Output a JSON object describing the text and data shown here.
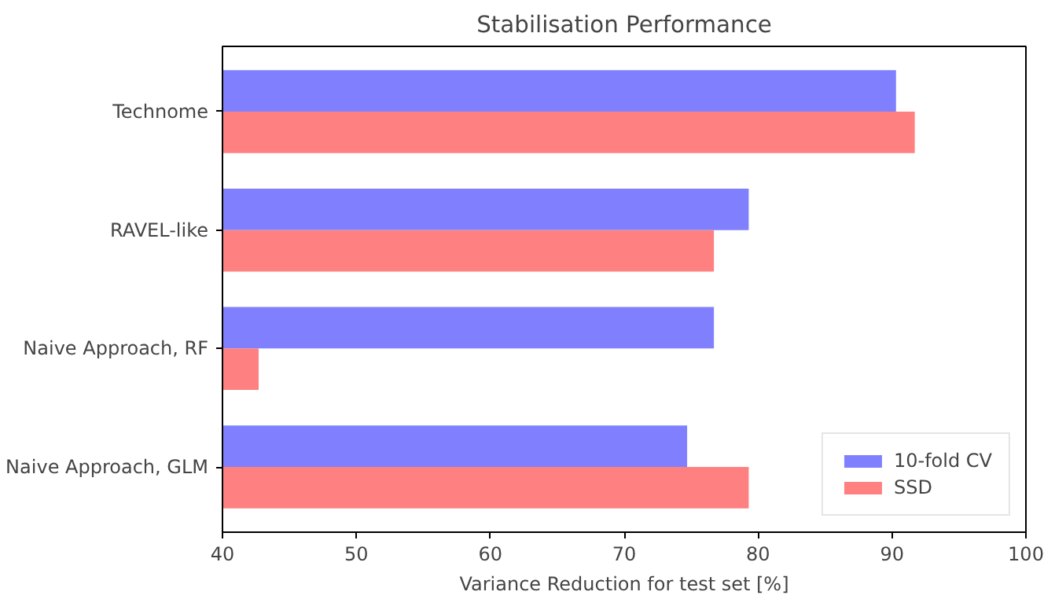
{
  "chart_data": {
    "type": "bar",
    "orientation": "horizontal",
    "title": "Stabilisation Performance",
    "xlabel": "Variance Reduction for test set [%]",
    "categories": [
      "Technome",
      "RAVEL-like",
      "Naive Approach, RF",
      "Naive Approach, GLM"
    ],
    "series": [
      {
        "name": "10-fold CV",
        "color": "#8080ff",
        "values": [
          90.3,
          79.3,
          76.7,
          74.7
        ]
      },
      {
        "name": "SSD",
        "color": "#ff8080",
        "values": [
          91.7,
          76.7,
          42.7,
          79.3
        ]
      }
    ],
    "xlim": [
      40,
      100
    ],
    "xticks": [
      40,
      50,
      60,
      70,
      80,
      90,
      100
    ],
    "legend": "bottom right",
    "grid": false
  }
}
